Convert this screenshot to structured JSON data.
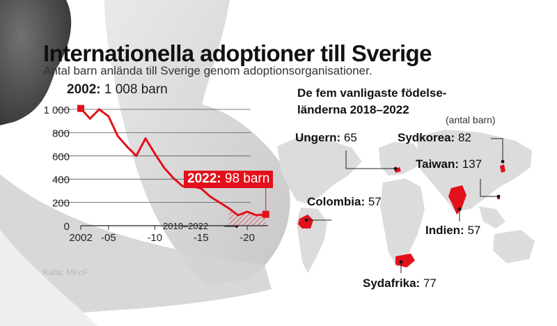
{
  "title": "Internationella adoptioner till Sverige",
  "subtitle": "Antal barn anlända till Sverige genom adoptionsorganisationer.",
  "source": "Källa: MFoF",
  "chart_data": {
    "type": "line",
    "title": "Internationella adoptioner till Sverige",
    "subtitle": "Antal barn anlända till Sverige genom adoptionsorganisationer.",
    "x": [
      2002,
      2003,
      2004,
      2005,
      2006,
      2007,
      2008,
      2009,
      2010,
      2011,
      2012,
      2013,
      2014,
      2015,
      2016,
      2017,
      2018,
      2019,
      2020,
      2021,
      2022
    ],
    "values": [
      1008,
      920,
      1000,
      940,
      770,
      680,
      600,
      750,
      620,
      500,
      410,
      340,
      340,
      320,
      250,
      200,
      150,
      90,
      120,
      90,
      98
    ],
    "xlim": [
      2002,
      2023
    ],
    "ylim": [
      0,
      1000
    ],
    "yticks": [
      0,
      200,
      400,
      600,
      800,
      1000
    ],
    "ytick_labels": [
      "0",
      "200",
      "400",
      "600",
      "800",
      "1 000"
    ],
    "xticks": [
      2002,
      2005,
      2010,
      2015,
      2020
    ],
    "xtick_labels": [
      "2002",
      "-05",
      "-10",
      "-15",
      "-20"
    ],
    "line_color": "#e3101b",
    "highlight_range": [
      2018,
      2022
    ],
    "highlight_label": "2018–2022",
    "annotations": [
      {
        "year_label": "2002:",
        "text": "1 008 barn"
      },
      {
        "year_label": "2022:",
        "text": "98 barn"
      }
    ]
  },
  "countries_panel": {
    "title": "De fem vanligaste födelse-länderna 2018–2022",
    "unit": "(antal barn)",
    "countries": [
      {
        "name": "Ungern:",
        "value": "65"
      },
      {
        "name": "Sydkorea:",
        "value": "82"
      },
      {
        "name": "Taiwan:",
        "value": "137"
      },
      {
        "name": "Colombia:",
        "value": "57"
      },
      {
        "name": "Indien:",
        "value": "57"
      },
      {
        "name": "Sydafrika:",
        "value": "77"
      }
    ]
  },
  "colors": {
    "accent": "#e3101b",
    "text": "#111111",
    "map_land": "#dcdcdc",
    "highlight_country": "#e3101b"
  }
}
